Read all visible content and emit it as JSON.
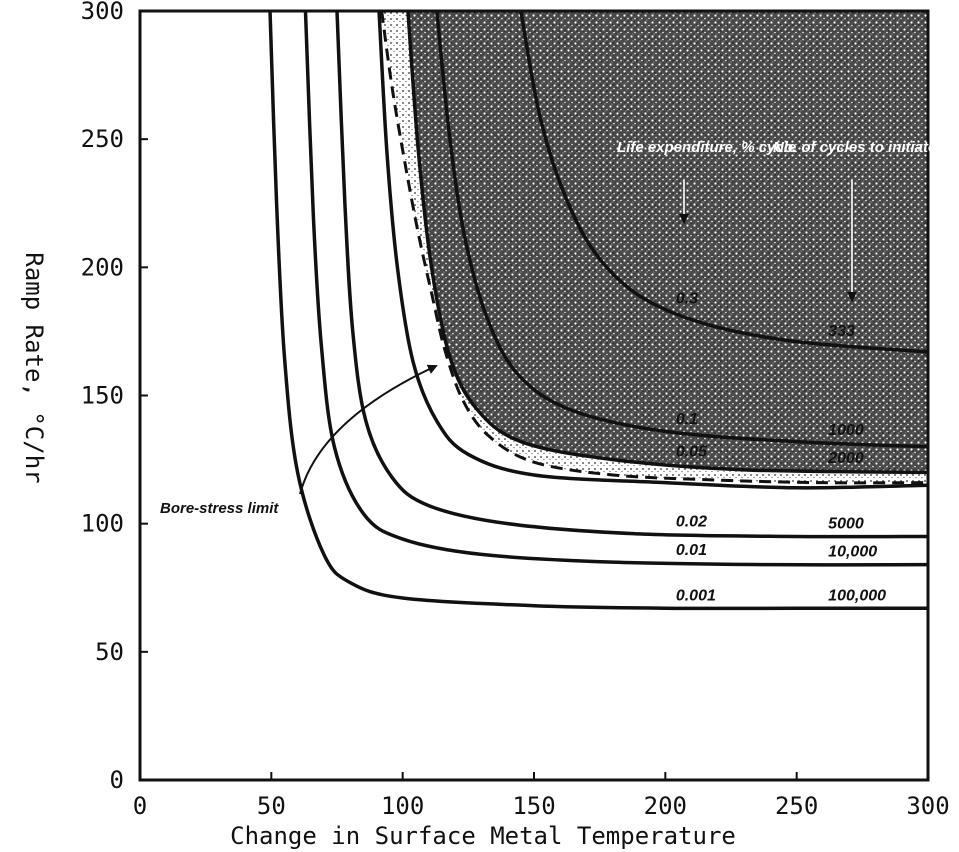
{
  "chart_data": {
    "type": "line",
    "xlabel": "Change in Surface Metal Temperature",
    "ylabel": "Ramp Rate, °C/hr",
    "xlim": [
      0,
      300
    ],
    "ylim": [
      0,
      300
    ],
    "x_ticks": [
      "0",
      "50",
      "100",
      "150",
      "200",
      "250",
      "300"
    ],
    "y_ticks": [
      "0",
      "50",
      "100",
      "150",
      "200",
      "250",
      "300"
    ],
    "grid": false,
    "legend_headers": [
      "Life expenditure, % cycle",
      "No. of cycles to initiate a crack"
    ],
    "series": [
      {
        "life_label": "0.001",
        "cycles_label": "100,000",
        "x": [
          49.5,
          52,
          55,
          60,
          70,
          80,
          100,
          150,
          200,
          250,
          300
        ],
        "y": [
          300,
          225,
          165,
          120,
          88,
          77,
          71,
          68,
          67,
          67,
          67
        ],
        "dashed": false
      },
      {
        "life_label": "0.01",
        "cycles_label": "10,000",
        "x": [
          63,
          66,
          69,
          74,
          85,
          100,
          130,
          180,
          240,
          300
        ],
        "y": [
          300,
          220,
          170,
          130,
          104,
          94,
          88,
          85,
          84,
          84
        ],
        "dashed": false
      },
      {
        "life_label": "0.02",
        "cycles_label": "5000",
        "x": [
          75,
          78,
          81,
          86,
          96,
          110,
          140,
          190,
          250,
          300
        ],
        "y": [
          300,
          225,
          175,
          140,
          118,
          107,
          100,
          96,
          95,
          95
        ],
        "dashed": false
      },
      {
        "life_label": "",
        "cycles_label": "",
        "x": [
          91,
          94,
          98,
          104,
          113,
          125,
          150,
          200,
          250,
          300
        ],
        "y": [
          300,
          245,
          200,
          163,
          140,
          127,
          119,
          116,
          114,
          115
        ],
        "dashed": false
      },
      {
        "life_label": "0.05",
        "cycles_label": "2000",
        "x": [
          102,
          106,
          111,
          118,
          128,
          145,
          180,
          230,
          300
        ],
        "y": [
          300,
          245,
          200,
          165,
          145,
          132,
          125,
          121,
          120
        ],
        "dashed": false
      },
      {
        "life_label": "0.1",
        "cycles_label": "1000",
        "x": [
          113,
          118,
          124,
          133,
          145,
          165,
          200,
          250,
          300
        ],
        "y": [
          300,
          250,
          210,
          178,
          157,
          144,
          136,
          132,
          130
        ],
        "dashed": false
      },
      {
        "life_label": "0.3",
        "cycles_label": "333",
        "x": [
          145,
          152,
          161,
          173,
          190,
          215,
          250,
          300
        ],
        "y": [
          300,
          260,
          230,
          206,
          189,
          178,
          171,
          167
        ],
        "dashed": false
      },
      {
        "name": "Bore-stress limit",
        "x": [
          92,
          96,
          101,
          106,
          111,
          116,
          123,
          133,
          150,
          180,
          220,
          260,
          300
        ],
        "y": [
          300,
          270,
          240,
          213,
          190,
          168,
          148,
          134,
          124,
          119,
          117,
          116,
          116
        ],
        "dashed": true
      }
    ],
    "annotation": "Bore-stress limit"
  }
}
